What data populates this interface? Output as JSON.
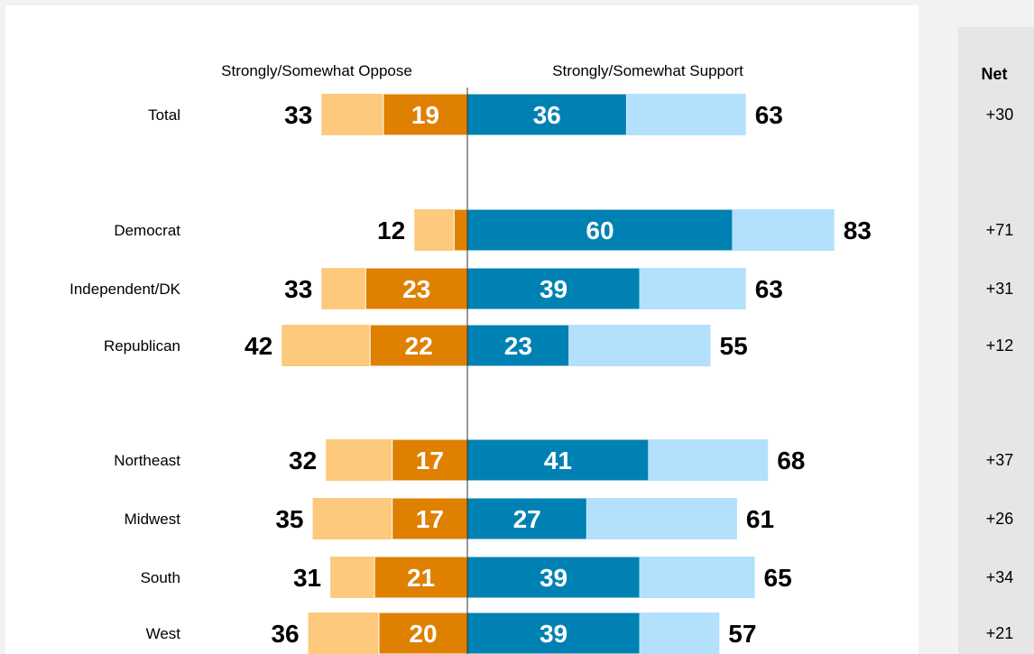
{
  "chart_data": {
    "type": "bar",
    "subtype": "diverging-stacked",
    "headers": {
      "oppose": "Strongly/Somewhat Oppose",
      "support": "Strongly/Somewhat Support",
      "net": "Net"
    },
    "series": [
      {
        "name": "Somewhat Oppose",
        "color": "#fdc97d"
      },
      {
        "name": "Strongly Oppose",
        "color": "#df8000"
      },
      {
        "name": "Strongly Support",
        "color": "#0081b3"
      },
      {
        "name": "Somewhat Support",
        "color": "#b3e0fd"
      }
    ],
    "rows": [
      {
        "label": "Total",
        "oppose_total": 33,
        "oppose_strong": 19,
        "support_strong": 36,
        "support_total": 63,
        "net": "+30"
      },
      {
        "label": "Democrat",
        "oppose_total": 12,
        "oppose_strong": 3,
        "oppose_strong_label": "",
        "support_strong": 60,
        "support_total": 83,
        "net": "+71"
      },
      {
        "label": "Independent/DK",
        "oppose_total": 33,
        "oppose_strong": 23,
        "support_strong": 39,
        "support_total": 63,
        "net": "+31"
      },
      {
        "label": "Republican",
        "oppose_total": 42,
        "oppose_strong": 22,
        "support_strong": 23,
        "support_total": 55,
        "net": "+12"
      },
      {
        "label": "Northeast",
        "oppose_total": 32,
        "oppose_strong": 17,
        "support_strong": 41,
        "support_total": 68,
        "net": "+37"
      },
      {
        "label": "Midwest",
        "oppose_total": 35,
        "oppose_strong": 17,
        "support_strong": 27,
        "support_total": 61,
        "net": "+26"
      },
      {
        "label": "South",
        "oppose_total": 31,
        "oppose_strong": 21,
        "support_strong": 39,
        "support_total": 65,
        "net": "+34"
      },
      {
        "label": "West",
        "oppose_total": 36,
        "oppose_strong": 20,
        "support_strong": 39,
        "support_total": 57,
        "net": "+21"
      }
    ]
  }
}
